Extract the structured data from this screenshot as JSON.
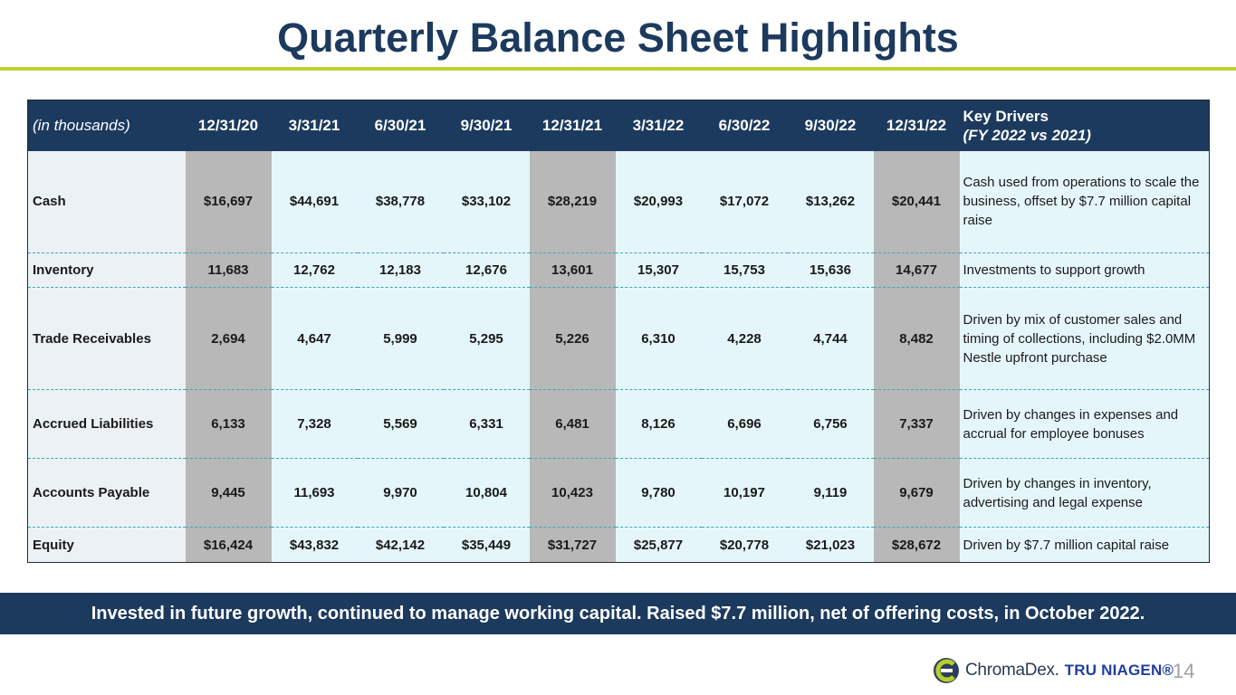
{
  "title": "Quarterly Balance Sheet Highlights",
  "table": {
    "label_header": "(in thousands)",
    "columns": [
      "12/31/20",
      "3/31/21",
      "6/30/21",
      "9/30/21",
      "12/31/21",
      "3/31/22",
      "6/30/22",
      "9/30/22",
      "12/31/22"
    ],
    "drivers_header": "Key Drivers",
    "drivers_subheader": "(FY 2022 vs 2021)",
    "rows": [
      {
        "label": "Cash",
        "values": [
          "$16,697",
          "$44,691",
          "$38,778",
          "$33,102",
          "$28,219",
          "$20,993",
          "$17,072",
          "$13,262",
          "$20,441"
        ],
        "driver": "Cash used from operations to scale the business, offset by $7.7 million capital raise"
      },
      {
        "label": "Inventory",
        "values": [
          "11,683",
          "12,762",
          "12,183",
          "12,676",
          "13,601",
          "15,307",
          "15,753",
          "15,636",
          "14,677"
        ],
        "driver": "Investments to support growth"
      },
      {
        "label": "Trade Receivables",
        "values": [
          "2,694",
          "4,647",
          "5,999",
          "5,295",
          "5,226",
          "6,310",
          "4,228",
          "4,744",
          "8,482"
        ],
        "driver": "Driven by mix of customer sales and timing of collections, including $2.0MM Nestle upfront purchase"
      },
      {
        "label": "Accrued Liabilities",
        "values": [
          "6,133",
          "7,328",
          "5,569",
          "6,331",
          "6,481",
          "8,126",
          "6,696",
          "6,756",
          "7,337"
        ],
        "driver": "Driven by changes in expenses and accrual for employee bonuses"
      },
      {
        "label": "Accounts Payable",
        "values": [
          "9,445",
          "11,693",
          "9,970",
          "10,804",
          "10,423",
          "9,780",
          "10,197",
          "9,119",
          "9,679"
        ],
        "driver": "Driven by changes in inventory, advertising and legal expense"
      },
      {
        "label": "Equity",
        "values": [
          "$16,424",
          "$43,832",
          "$42,142",
          "$35,449",
          "$31,727",
          "$25,877",
          "$20,778",
          "$21,023",
          "$28,672"
        ],
        "driver": "Driven by $7.7 million capital raise"
      }
    ]
  },
  "banner": "Invested in future growth, continued to manage working capital.  Raised $7.7 million, net of offering costs, in October 2022.",
  "logo": {
    "brand1": "ChromaDex.",
    "brand2": "TRU NIAGEN®",
    "icon": "chromadex-logo-icon"
  },
  "page_number": "14",
  "colors": {
    "navy": "#1c3a5e",
    "accent_rule": "#c3cf2f",
    "cell_bg": "#e5f6fb",
    "yearend_bg": "#b8b8b8",
    "dash": "#3aa8b8"
  }
}
